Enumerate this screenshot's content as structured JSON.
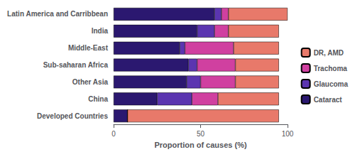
{
  "chart_data": {
    "type": "bar",
    "orientation": "horizontal",
    "stacked": true,
    "categories": [
      "Latin America and Carribbean",
      "India",
      "Middle-East",
      "Sub-saharan Africa",
      "Other Asia",
      "China",
      "Developed Countries"
    ],
    "series": [
      {
        "name": "Cataract",
        "color": "#2B1870",
        "values": [
          58,
          48,
          38,
          43,
          42,
          25,
          8
        ]
      },
      {
        "name": "Glaucoma",
        "color": "#5B35B0",
        "values": [
          4,
          10,
          3,
          5,
          8,
          20,
          0
        ]
      },
      {
        "name": "Trachoma",
        "color": "#D040A0",
        "values": [
          4,
          8,
          28,
          22,
          20,
          15,
          0
        ]
      },
      {
        "name": "DR, AMD",
        "color": "#E8796A",
        "values": [
          34,
          29,
          26,
          25,
          25,
          35,
          87
        ]
      }
    ],
    "xlabel": "Proportion of causes (%)",
    "xlim": [
      0,
      100
    ],
    "xticks": [
      0,
      50,
      100
    ],
    "grid": false,
    "legend": "right"
  }
}
